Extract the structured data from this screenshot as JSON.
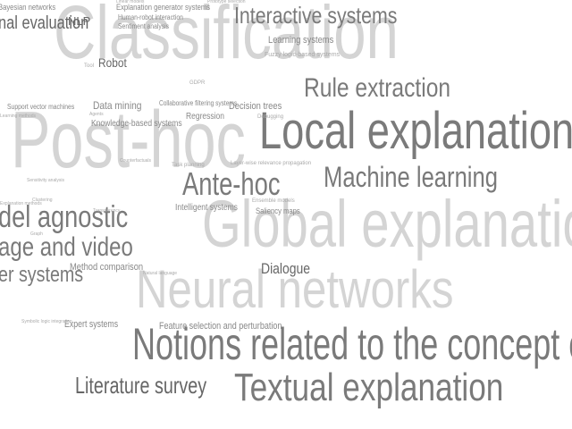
{
  "word_cloud": {
    "words": [
      {
        "text": "Classification",
        "style": "big"
      },
      {
        "text": "Post-hoc",
        "style": "big"
      },
      {
        "text": "Global explanation",
        "style": "big"
      },
      {
        "text": "Neural networks",
        "style": "big"
      },
      {
        "text": "Local explanation",
        "style": "mid"
      },
      {
        "text": "Notions related to the concept of exp",
        "style": "mid"
      },
      {
        "text": "Textual explanation",
        "style": "mid"
      },
      {
        "text": "Rule extraction",
        "style": "mid"
      },
      {
        "text": "Machine learning",
        "style": "mid"
      },
      {
        "text": "Ante-hoc",
        "style": "mid"
      },
      {
        "text": "Interactive systems",
        "style": "mid"
      },
      {
        "text": "del agnostic",
        "style": "mid"
      },
      {
        "text": "age and video",
        "style": "mid"
      },
      {
        "text": "er systems",
        "style": "mid"
      },
      {
        "text": "Literature survey",
        "style": "dark"
      },
      {
        "text": "nal evaluation",
        "style": "dark"
      },
      {
        "text": "NLP",
        "style": "dark"
      },
      {
        "text": "Robot",
        "style": "dark"
      },
      {
        "text": "Dialogue",
        "style": "dark"
      },
      {
        "text": "Data mining",
        "style": "small"
      },
      {
        "text": "Decision trees",
        "style": "small"
      },
      {
        "text": "Learning systems",
        "style": "small"
      },
      {
        "text": "Method comparison",
        "style": "small"
      },
      {
        "text": "Expert systems",
        "style": "small"
      },
      {
        "text": "Feature selection and perturbation",
        "style": "small"
      },
      {
        "text": "Knowledge-based systems",
        "style": "small"
      },
      {
        "text": "Regression",
        "style": "small"
      },
      {
        "text": "Intelligent systems",
        "style": "small"
      },
      {
        "text": "Saliency maps",
        "style": "small"
      },
      {
        "text": "Bayesian networks",
        "style": "small"
      },
      {
        "text": "Explanation generator systems",
        "style": "small"
      },
      {
        "text": "Human-robot interaction",
        "style": "small"
      },
      {
        "text": "Sentiment analysis",
        "style": "small"
      },
      {
        "text": "Support vector machines",
        "style": "small"
      },
      {
        "text": "Collaborative filtering systems",
        "style": "small"
      },
      {
        "text": "Fuzzy logic-based systems",
        "style": "tiny"
      },
      {
        "text": "Layer-wise relevance propagation",
        "style": "tiny"
      },
      {
        "text": "Ensemble models",
        "style": "tiny"
      },
      {
        "text": "Task planning",
        "style": "tiny"
      },
      {
        "text": "Prototype selection",
        "style": "tiny"
      },
      {
        "text": "Symbolic logic integration",
        "style": "tiny"
      },
      {
        "text": "Natural language",
        "style": "tiny"
      },
      {
        "text": "GDPR",
        "style": "tiny"
      },
      {
        "text": "Tool",
        "style": "tiny"
      },
      {
        "text": "Debugging",
        "style": "tiny"
      },
      {
        "text": "Linear models",
        "style": "tiny"
      },
      {
        "text": "Explanation methods",
        "style": "tiny"
      },
      {
        "text": "Sensitivity analysis",
        "style": "tiny"
      },
      {
        "text": "Learning methods",
        "style": "tiny"
      },
      {
        "text": "Transparency",
        "style": "tiny"
      },
      {
        "text": "Counterfactuals",
        "style": "tiny"
      },
      {
        "text": "Graph",
        "style": "tiny"
      },
      {
        "text": "Clustering",
        "style": "tiny"
      },
      {
        "text": "Agents",
        "style": "tiny"
      }
    ]
  }
}
